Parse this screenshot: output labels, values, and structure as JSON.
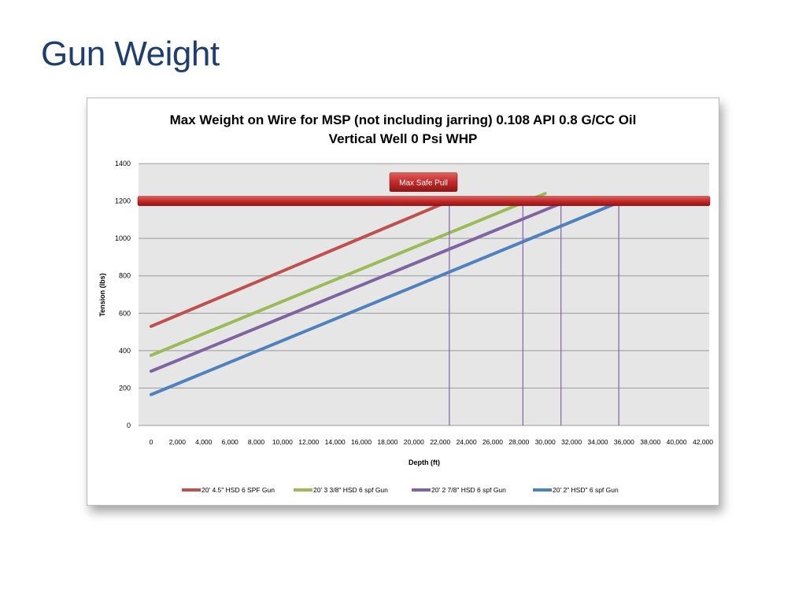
{
  "slide": {
    "title": "Gun Weight"
  },
  "chart_data": {
    "type": "line",
    "title": "Max Weight on Wire  for MSP (not including jarring) 0.108 API  0.8 G/CC Oil",
    "subtitle": "Vertical Well 0  Psi WHP",
    "xlabel": "Depth (ft)",
    "ylabel": "Tension (lbs)",
    "xlim": [
      0,
      42000
    ],
    "ylim": [
      0,
      1400
    ],
    "x_ticks": [
      "0",
      "2,000",
      "4,000",
      "6,000",
      "8,000",
      "10,000",
      "12,000",
      "14,000",
      "16,000",
      "18,000",
      "20,000",
      "22,000",
      "24,000",
      "26,000",
      "28,000",
      "30,000",
      "32,000",
      "34,000",
      "36,000",
      "38,000",
      "40,000",
      "42,000"
    ],
    "y_ticks": [
      "0",
      "200",
      "400",
      "600",
      "800",
      "1000",
      "1200",
      "1400"
    ],
    "grid": "horizontal",
    "legend_position": "bottom",
    "max_safe_pull": {
      "label": "Max Safe Pull",
      "value": 1200
    },
    "series": [
      {
        "name": "20' 4.5\" HSD 6 SPF Gun",
        "color": "#c0504d",
        "x": [
          0,
          22700
        ],
        "y": [
          530,
          1200
        ]
      },
      {
        "name": "20' 3 3/8\" HSD 6 spf Gun",
        "color": "#9bbb59",
        "x": [
          0,
          30000
        ],
        "y": [
          375,
          1240
        ]
      },
      {
        "name": "20' 2 7/8\" HSD 6 spf Gun",
        "color": "#8064a2",
        "x": [
          0,
          31300
        ],
        "y": [
          290,
          1190
        ]
      },
      {
        "name": "20' 2\" HSD\"  6 spf Gun",
        "color": "#4f81bd",
        "x": [
          0,
          35500
        ],
        "y": [
          165,
          1190
        ]
      }
    ],
    "depth_markers": [
      {
        "x": 22700,
        "color": "#8064a2"
      },
      {
        "x": 28300,
        "color": "#8064a2"
      },
      {
        "x": 31200,
        "color": "#8064a2"
      },
      {
        "x": 35600,
        "color": "#8064a2"
      }
    ],
    "plot_background": "#e6e6e6"
  }
}
